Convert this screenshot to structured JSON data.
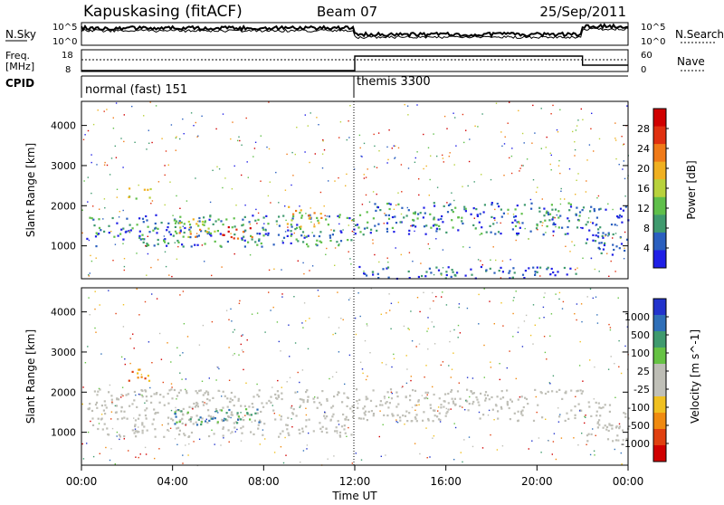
{
  "header": {
    "station": "Kapuskasing (fitACF)",
    "beam": "Beam 07",
    "date": "25/Sep/2011"
  },
  "top_panel": {
    "left_label": "N.Sky",
    "right_label": "N.Search",
    "ticks_left": [
      "10^5",
      "10^0"
    ],
    "ticks_right": [
      "10^5",
      "10^0"
    ]
  },
  "freq_panel": {
    "left_label_1": "Freq.",
    "left_label_2": "[MHz]",
    "right_label": "Nave",
    "ticks_left": [
      "18",
      "8"
    ],
    "ticks_right": [
      "60",
      "0"
    ]
  },
  "cpid_panel": {
    "label": "CPID",
    "modes": [
      {
        "name": "normal (fast) 151",
        "start_hour": 0,
        "end_hour": 12
      },
      {
        "name": "themis 3300",
        "start_hour": 12,
        "end_hour": 24
      }
    ]
  },
  "x_axis": {
    "label": "Time UT",
    "ticks": [
      "00:00",
      "04:00",
      "08:00",
      "12:00",
      "16:00",
      "20:00",
      "00:00"
    ],
    "range_hours": [
      0,
      24
    ]
  },
  "power_panel": {
    "ylabel": "Slant Range [km]",
    "yticks": [
      "1000",
      "2000",
      "3000",
      "4000"
    ],
    "colorbar_label": "Power [dB]",
    "colorbar_ticks": [
      "4",
      "8",
      "12",
      "16",
      "20",
      "24",
      "28"
    ],
    "colors": [
      "#1f1fe6",
      "#2a5fbf",
      "#3f9a6e",
      "#5fbf4a",
      "#b8d23c",
      "#f0b020",
      "#f07a18",
      "#e03010",
      "#d00000"
    ]
  },
  "velocity_panel": {
    "ylabel": "Slant Range [km]",
    "yticks": [
      "1000",
      "2000",
      "3000",
      "4000"
    ],
    "colorbar_label": "Velocity [m s^-1]",
    "colorbar_ticks": [
      "1000",
      "500",
      "100",
      "25",
      "-25",
      "-100",
      "-500",
      "-1000"
    ],
    "colors": [
      "#2233cc",
      "#2f6fb8",
      "#3f9a6e",
      "#66c244",
      "#bdbdb5",
      "#c0c0b8",
      "#f0c020",
      "#f08a10",
      "#e04010",
      "#d00000"
    ]
  },
  "chart_data": {
    "type": "heatmap",
    "x": {
      "unit": "hours UT",
      "range": [
        0,
        24
      ]
    },
    "y": {
      "unit": "km",
      "range": [
        180,
        4600
      ]
    },
    "power_regions": [
      {
        "t0": 0.2,
        "t1": 12.0,
        "r0": 1000,
        "r1": 1800,
        "level": "mid"
      },
      {
        "t0": 2.0,
        "t1": 3.0,
        "r0": 2200,
        "r1": 2500,
        "level": "high"
      },
      {
        "t0": 4.0,
        "t1": 6.0,
        "r0": 1200,
        "r1": 1700,
        "level": "high"
      },
      {
        "t0": 6.0,
        "t1": 7.5,
        "r0": 1200,
        "r1": 1500,
        "level": "peak"
      },
      {
        "t0": 9.0,
        "t1": 10.5,
        "r0": 1500,
        "r1": 2000,
        "level": "high"
      },
      {
        "t0": 12.0,
        "t1": 22.0,
        "r0": 1300,
        "r1": 2100,
        "level": "mid"
      },
      {
        "t0": 12.0,
        "t1": 22.0,
        "r0": 200,
        "r1": 500,
        "level": "low"
      },
      {
        "t0": 22.0,
        "t1": 24.0,
        "r0": 800,
        "r1": 2000,
        "level": "low"
      }
    ],
    "velocity_regions": [
      {
        "t0": 0.2,
        "t1": 12.0,
        "r0": 900,
        "r1": 2100,
        "level": "near-zero"
      },
      {
        "t0": 2.0,
        "t1": 3.0,
        "r0": 2200,
        "r1": 2600,
        "level": "negative"
      },
      {
        "t0": 4.0,
        "t1": 8.0,
        "r0": 1200,
        "r1": 1600,
        "level": "positive"
      },
      {
        "t0": 12.0,
        "t1": 22.0,
        "r0": 1300,
        "r1": 2100,
        "level": "near-zero"
      },
      {
        "t0": 22.0,
        "t1": 24.0,
        "r0": 800,
        "r1": 1800,
        "level": "near-zero"
      }
    ]
  }
}
